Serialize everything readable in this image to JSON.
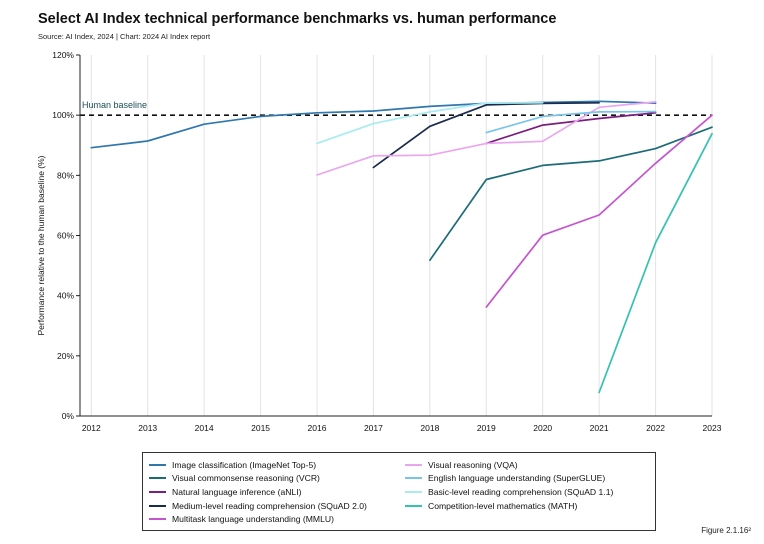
{
  "chart_data": {
    "type": "line",
    "title": "Select AI Index technical performance benchmarks vs. human performance",
    "subtitle": "Source: AI Index, 2024 | Chart: 2024 AI Index report",
    "ylabel": "Performance relative to the human baseline (%)",
    "xlabel": "",
    "xlim": [
      2011.8,
      2023
    ],
    "ylim": [
      0,
      120
    ],
    "x_ticks": [
      "2012",
      "2013",
      "2014",
      "2015",
      "2016",
      "2017",
      "2018",
      "2019",
      "2020",
      "2021",
      "2022",
      "2023"
    ],
    "y_ticks": [
      0,
      20,
      40,
      60,
      80,
      100,
      120
    ],
    "y_tick_labels": [
      "0%",
      "20%",
      "40%",
      "60%",
      "80%",
      "100%",
      "120%"
    ],
    "grid": "vertical",
    "baseline": {
      "value": 100,
      "label": "Human baseline"
    },
    "series": [
      {
        "name": "Image classification (ImageNet Top-5)",
        "color": "#2f77ae",
        "x": [
          2012,
          2013,
          2014,
          2015,
          2016,
          2017,
          2018,
          2019,
          2020,
          2021,
          2022
        ],
        "y": [
          89.2,
          91.4,
          97.0,
          99.6,
          100.8,
          101.4,
          102.9,
          103.9,
          104.2,
          104.6,
          104.0
        ]
      },
      {
        "name": "Visual commonsense reasoning (VCR)",
        "color": "#1d6b78",
        "x": [
          2018,
          2019,
          2020,
          2021,
          2022,
          2023
        ],
        "y": [
          51.8,
          78.6,
          83.3,
          84.8,
          88.9,
          96.0
        ]
      },
      {
        "name": "Natural language inference (aNLI)",
        "color": "#7b1e7d",
        "x": [
          2019,
          2020,
          2021,
          2022
        ],
        "y": [
          90.6,
          96.7,
          98.9,
          100.8
        ]
      },
      {
        "name": "Medium-level reading comprehension (SQuAD 2.0)",
        "color": "#1b2b4d",
        "x": [
          2017,
          2018,
          2019,
          2020,
          2021
        ],
        "y": [
          82.6,
          96.3,
          103.4,
          103.9,
          104.1
        ]
      },
      {
        "name": "Multitask language understanding (MMLU)",
        "color": "#c653cf",
        "x": [
          2019,
          2020,
          2021,
          2022,
          2023
        ],
        "y": [
          36.2,
          60.1,
          66.8,
          84.0,
          100.0
        ]
      },
      {
        "name": "Visual reasoning (VQA)",
        "color": "#e9a6ee",
        "x": [
          2016,
          2017,
          2018,
          2019,
          2020,
          2021,
          2022
        ],
        "y": [
          80.1,
          86.5,
          86.7,
          90.6,
          91.3,
          102.6,
          104.4
        ]
      },
      {
        "name": "English language understanding (SuperGLUE)",
        "color": "#7ac4ea",
        "x": [
          2019,
          2020,
          2021,
          2022
        ],
        "y": [
          94.2,
          99.6,
          101.1,
          101.2
        ]
      },
      {
        "name": "Basic-level reading comprehension (SQuAD 1.1)",
        "color": "#a8ebf0",
        "x": [
          2016,
          2017,
          2018,
          2019,
          2020
        ],
        "y": [
          90.6,
          97.2,
          101.1,
          104.0,
          104.1
        ]
      },
      {
        "name": "Competition-level mathematics (MATH)",
        "color": "#34c2b1",
        "x": [
          2021,
          2022,
          2023
        ],
        "y": [
          7.8,
          57.6,
          93.8
        ]
      }
    ],
    "legend_position": "bottom"
  },
  "figure_label": "Figure 2.1.16²"
}
